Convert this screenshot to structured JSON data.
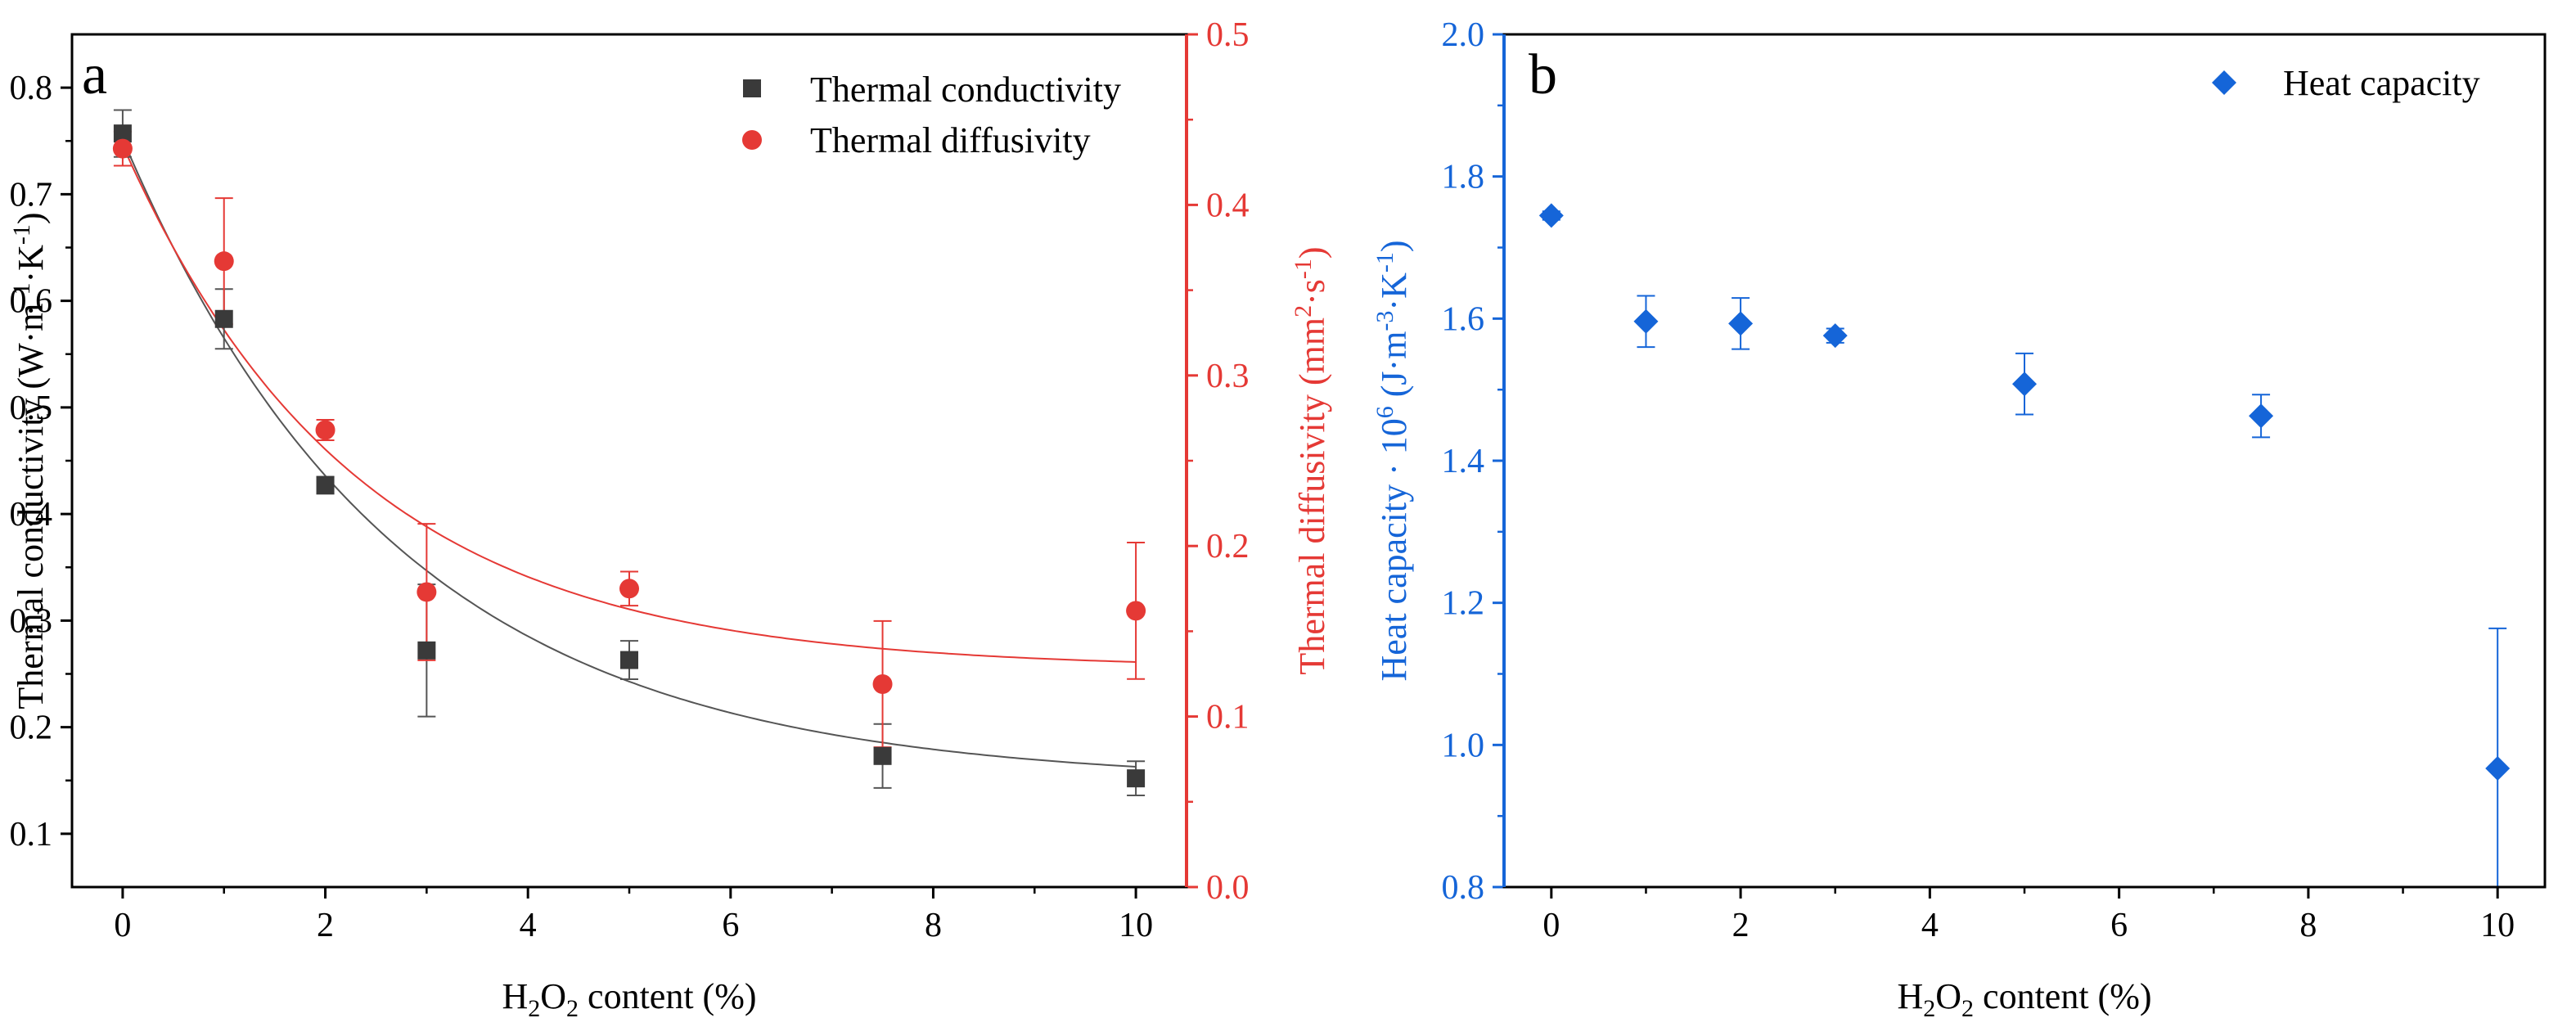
{
  "colors": {
    "axis": "#000000",
    "conductivity": "#3a3a3a",
    "diffusivity": "#e53935",
    "heat_capacity": "#1565d8"
  },
  "chart_data": [
    {
      "panel": "a",
      "type": "scatter",
      "title": "",
      "x_ticks": [
        0,
        2,
        4,
        6,
        8,
        10
      ],
      "x_tick_labels": [
        "0",
        "2",
        "4",
        "6",
        "8",
        "10"
      ],
      "xlim": [
        -0.5,
        10.5
      ],
      "xlabel": {
        "pre": "H",
        "sub": "2",
        "mid": "O",
        "sub2": "2",
        "post": " content (%)"
      },
      "ylabel_left": {
        "t1": "Thermal conductivity (W·m",
        "s1": "-1",
        "t2": "·K",
        "s2": "-1",
        "t3": ")"
      },
      "ylabel_right": {
        "t1": "Thermal diffusivity (mm",
        "s1": "2",
        "t2": "·s",
        "s2": "-1",
        "t3": ")"
      },
      "ylim_left": [
        0.05,
        0.85
      ],
      "ylim_right": [
        0.0,
        0.5
      ],
      "y_ticks_left": [
        0.1,
        0.2,
        0.3,
        0.4,
        0.5,
        0.6,
        0.7,
        0.8
      ],
      "y_tick_labels_left": [
        "0.1",
        "0.2",
        "0.3",
        "0.4",
        "0.5",
        "0.6",
        "0.7",
        "0.8"
      ],
      "y_ticks_right": [
        0.0,
        0.1,
        0.2,
        0.3,
        0.4,
        0.5
      ],
      "y_tick_labels_right": [
        "0.0",
        "0.1",
        "0.2",
        "0.3",
        "0.4",
        "0.5"
      ],
      "legend_position": "top-right",
      "series": [
        {
          "name": "Thermal conductivity",
          "axis": "left",
          "marker": "square",
          "x": [
            0,
            1,
            2,
            3,
            5,
            7.5,
            10
          ],
          "y": [
            0.757,
            0.583,
            0.427,
            0.272,
            0.263,
            0.173,
            0.152
          ],
          "err": [
            0.022,
            0.028,
            0.008,
            0.062,
            0.018,
            0.03,
            0.016
          ],
          "fit": {
            "type": "exp",
            "y0": 0.148,
            "A": 0.604,
            "t": 2.7
          }
        },
        {
          "name": "Thermal diffusivity",
          "axis": "right",
          "marker": "circle",
          "x": [
            0,
            1,
            2,
            3,
            5,
            7.5,
            10
          ],
          "y": [
            0.433,
            0.367,
            0.268,
            0.173,
            0.175,
            0.119,
            0.162
          ],
          "err": [
            0.01,
            0.037,
            0.006,
            0.04,
            0.01,
            0.037,
            0.04
          ],
          "fit": {
            "type": "exp",
            "y0": 0.128,
            "A": 0.307,
            "t": 2.3
          }
        }
      ]
    },
    {
      "panel": "b",
      "type": "scatter",
      "title": "",
      "x_ticks": [
        0,
        2,
        4,
        6,
        8,
        10
      ],
      "x_tick_labels": [
        "0",
        "2",
        "4",
        "6",
        "8",
        "10"
      ],
      "xlim": [
        -0.5,
        10.5
      ],
      "xlabel": {
        "pre": "H",
        "sub": "2",
        "mid": "O",
        "sub2": "2",
        "post": " content (%)"
      },
      "ylabel": {
        "t1": "Heat capacity · 10",
        "s1": "6",
        "t2": " (J·m",
        "s2": "-3",
        "t3": "·K",
        "s3": "-1",
        "t4": ")"
      },
      "ylim": [
        0.8,
        2.0
      ],
      "y_ticks": [
        0.8,
        1.0,
        1.2,
        1.4,
        1.6,
        1.8,
        2.0
      ],
      "y_tick_labels": [
        "0.8",
        "1.0",
        "1.2",
        "1.4",
        "1.6",
        "1.8",
        "2.0"
      ],
      "legend_position": "top-right",
      "series": [
        {
          "name": "Heat capacity",
          "marker": "diamond",
          "x": [
            0,
            1,
            2,
            3,
            5,
            7.5,
            10
          ],
          "y": [
            1.745,
            1.596,
            1.593,
            1.576,
            1.508,
            1.463,
            0.967
          ],
          "err": [
            0.006,
            0.036,
            0.036,
            0.01,
            0.043,
            0.03,
            0.197
          ]
        }
      ]
    }
  ]
}
